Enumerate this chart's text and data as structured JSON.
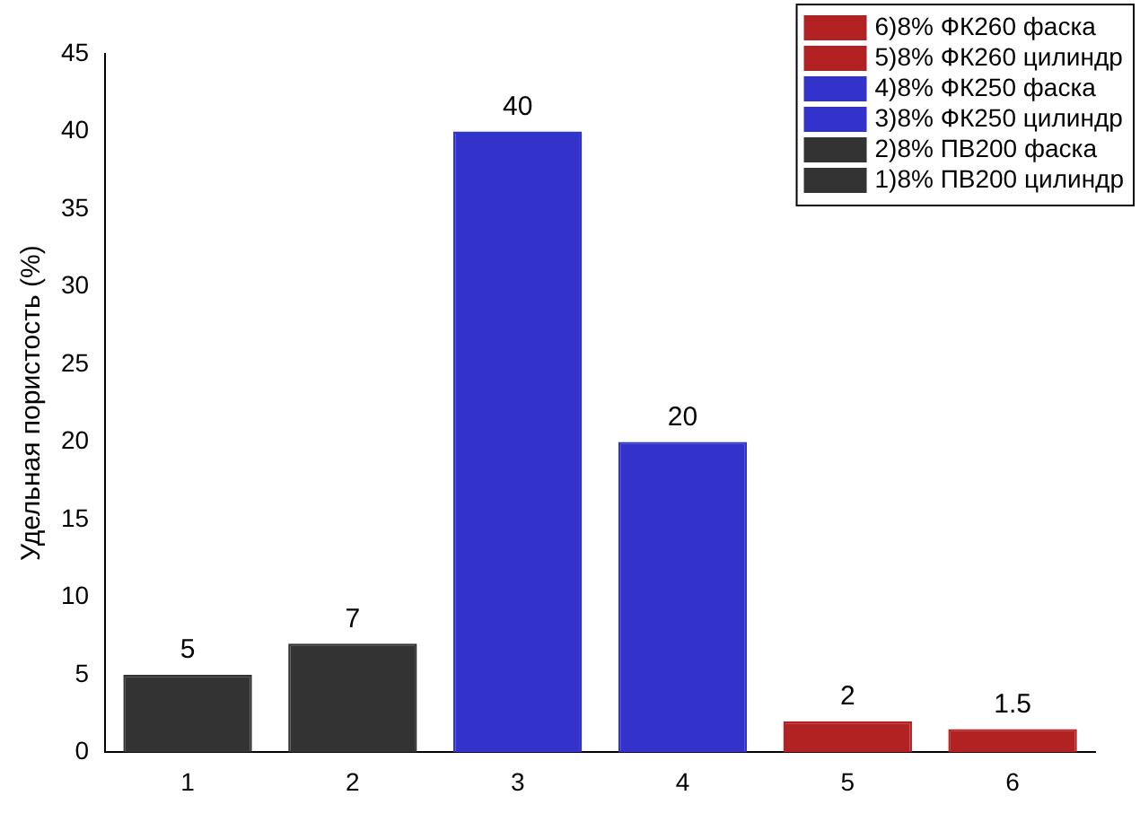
{
  "chart_data": {
    "type": "bar",
    "ylabel": "Удельная пористость (%)",
    "categories": [
      "1",
      "2",
      "3",
      "4",
      "5",
      "6"
    ],
    "series": [
      {
        "name": "1)8% ПВ200 цилиндр",
        "color": "#333333",
        "values": [
          5,
          null,
          null,
          null,
          null,
          null
        ]
      },
      {
        "name": "2)8% ПВ200 фаска",
        "color": "#333333",
        "values": [
          null,
          7,
          null,
          null,
          null,
          null
        ]
      },
      {
        "name": "3)8% ФК250 цилиндр",
        "color": "#3333cc",
        "values": [
          null,
          null,
          40,
          null,
          null,
          null
        ]
      },
      {
        "name": "4)8% ФК250 фаска",
        "color": "#3333cc",
        "values": [
          null,
          null,
          null,
          20,
          null,
          null
        ]
      },
      {
        "name": "5)8% ФК260 цилиндр",
        "color": "#b22222",
        "values": [
          null,
          null,
          null,
          null,
          2,
          null
        ]
      },
      {
        "name": "6)8% ФК260 фаска",
        "color": "#b22222",
        "values": [
          null,
          null,
          null,
          null,
          null,
          1.5
        ]
      }
    ],
    "ylim": [
      0,
      45
    ],
    "yticks": [
      0,
      5,
      10,
      15,
      20,
      25,
      30,
      35,
      40,
      45
    ],
    "grid": false,
    "legend": "top right",
    "data_labels": true
  }
}
